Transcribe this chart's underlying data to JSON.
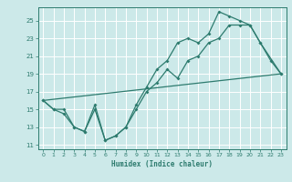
{
  "line1_x": [
    0,
    1,
    2,
    3,
    4,
    5,
    6,
    7,
    8,
    9,
    10,
    11,
    12,
    13,
    14,
    15,
    16,
    17,
    18,
    19,
    20,
    21,
    22,
    23
  ],
  "line1_y": [
    16,
    15,
    14.5,
    13,
    12.5,
    15,
    11.5,
    12,
    13,
    15,
    17,
    18,
    19.5,
    18.5,
    20.5,
    21,
    22.5,
    23,
    24.5,
    24.5,
    24.5,
    22.5,
    20.5,
    19
  ],
  "line2_x": [
    0,
    1,
    2,
    3,
    4,
    5,
    6,
    7,
    8,
    9,
    10,
    11,
    12,
    13,
    14,
    15,
    16,
    17,
    18,
    19,
    20,
    21,
    23
  ],
  "line2_y": [
    16,
    15,
    15,
    13,
    12.5,
    15.5,
    11.5,
    12,
    13,
    15.5,
    17.5,
    19.5,
    20.5,
    22.5,
    23,
    22.5,
    23.5,
    26,
    25.5,
    25,
    24.5,
    22.5,
    19
  ],
  "line3_x": [
    0,
    23
  ],
  "line3_y": [
    16,
    19
  ],
  "color": "#2d7b6e",
  "bg_color": "#cce9e9",
  "grid_color": "#ffffff",
  "xlabel": "Humidex (Indice chaleur)",
  "ylim": [
    10.5,
    26.5
  ],
  "xlim": [
    -0.5,
    23.5
  ],
  "yticks": [
    11,
    13,
    15,
    17,
    19,
    21,
    23,
    25
  ],
  "xticks": [
    0,
    1,
    2,
    3,
    4,
    5,
    6,
    7,
    8,
    9,
    10,
    11,
    12,
    13,
    14,
    15,
    16,
    17,
    18,
    19,
    20,
    21,
    22,
    23
  ]
}
